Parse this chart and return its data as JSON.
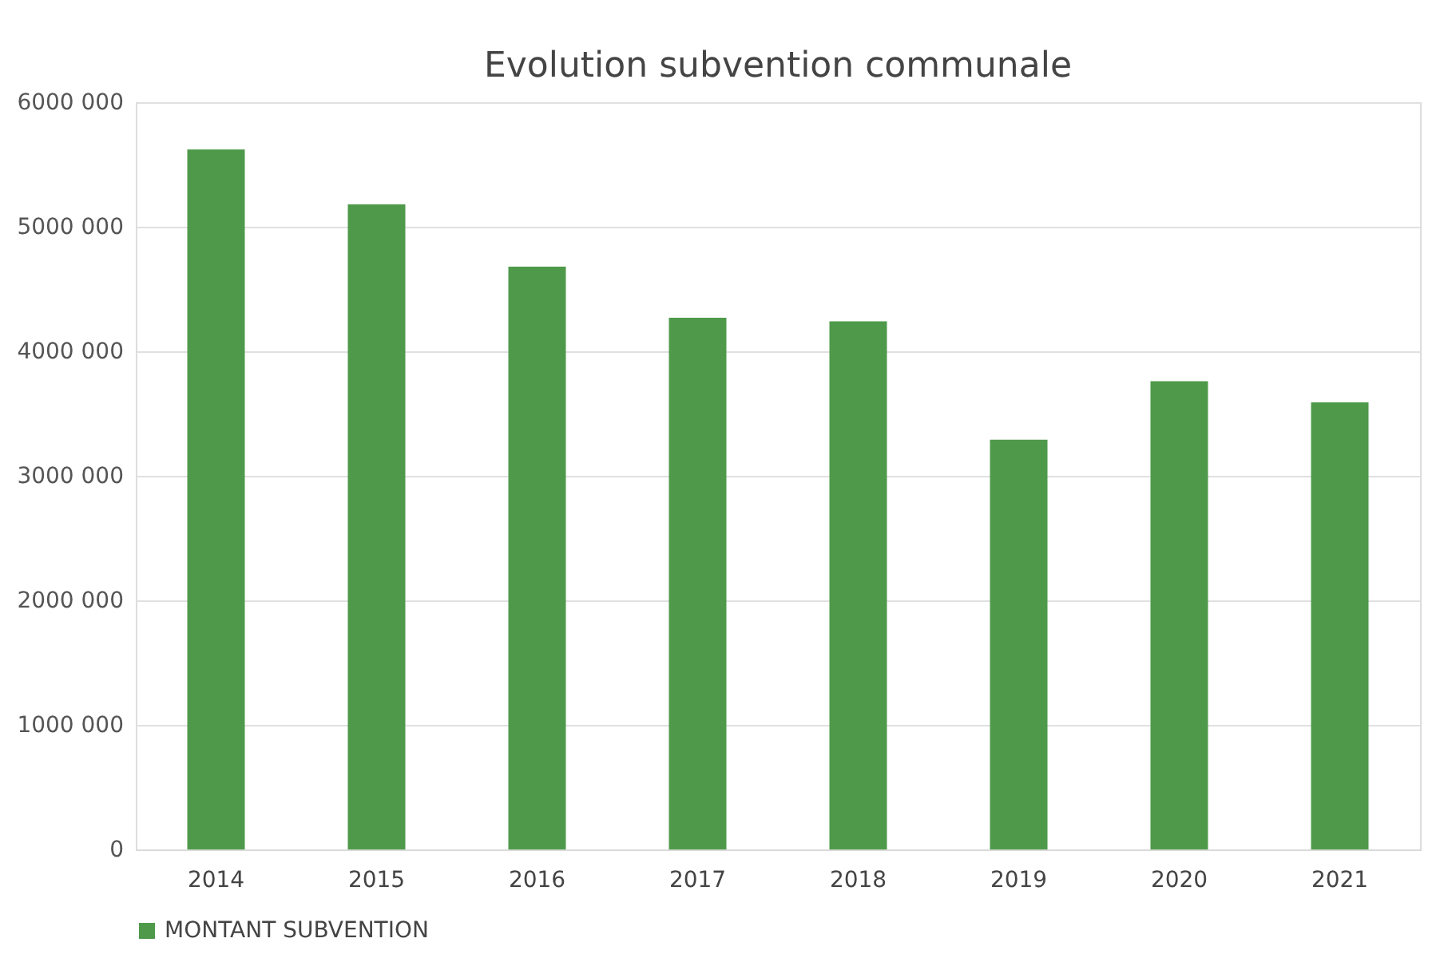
{
  "chart_data": {
    "type": "bar",
    "title": "Evolution subvention communale",
    "categories": [
      "2014",
      "2015",
      "2016",
      "2017",
      "2018",
      "2019",
      "2020",
      "2021"
    ],
    "series": [
      {
        "name": "MONTANT SUBVENTION",
        "color": "#4e9a4a",
        "values": [
          5620000,
          5180000,
          4680000,
          4270000,
          4240000,
          3290000,
          3760000,
          3590000
        ]
      }
    ],
    "ylim": [
      0,
      6000000
    ],
    "yticks": [
      0,
      {
        "value": 1000000,
        "label": "1000 000"
      },
      {
        "value": 2000000,
        "label": "2000 000"
      },
      {
        "value": 3000000,
        "label": "3000 000"
      },
      {
        "value": 4000000,
        "label": "4000 000"
      },
      {
        "value": 5000000,
        "label": "5000 000"
      },
      {
        "value": 6000000,
        "label": "6000 000"
      }
    ],
    "grid": "y",
    "legend": "bottom"
  }
}
